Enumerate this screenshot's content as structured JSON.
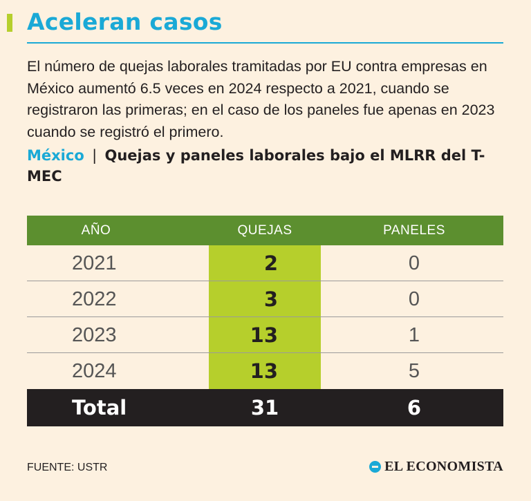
{
  "title": "Aceleran casos",
  "intro": "El número de quejas laborales tramitadas por EU contra empresas en México aumentó 6.5 veces en 2024 respecto a 2021, cuando se registraron las primeras; en el caso de los paneles fue apenas en 2023 cuando se registró el primero.",
  "subhead": {
    "country": "México",
    "separator": "|",
    "text": "Quejas y paneles laborales bajo el MLRR del T-MEC"
  },
  "table": {
    "headers": [
      "AÑO",
      "QUEJAS",
      "PANELES"
    ],
    "rows": [
      {
        "year": "2021",
        "quejas": "2",
        "paneles": "0"
      },
      {
        "year": "2022",
        "quejas": "3",
        "paneles": "0"
      },
      {
        "year": "2023",
        "quejas": "13",
        "paneles": "1"
      },
      {
        "year": "2024",
        "quejas": "13",
        "paneles": "5"
      }
    ],
    "total": {
      "label": "Total",
      "quejas": "31",
      "paneles": "6"
    }
  },
  "source": "FUENTE: USTR",
  "brand": "EL ECONOMISTA",
  "colors": {
    "accent": "#1aa9d6",
    "header_green": "#5c8f2f",
    "highlight_lime": "#b6cf2c",
    "total_bar": "#231f20",
    "background": "#fdf1e0"
  },
  "chart_data": {
    "type": "table",
    "title": "Quejas y paneles laborales bajo el MLRR del T-MEC",
    "columns": [
      "AÑO",
      "QUEJAS",
      "PANELES"
    ],
    "categories": [
      "2021",
      "2022",
      "2023",
      "2024"
    ],
    "series": [
      {
        "name": "QUEJAS",
        "values": [
          2,
          3,
          13,
          13
        ],
        "total": 31
      },
      {
        "name": "PANELES",
        "values": [
          0,
          0,
          1,
          5
        ],
        "total": 6
      }
    ]
  }
}
